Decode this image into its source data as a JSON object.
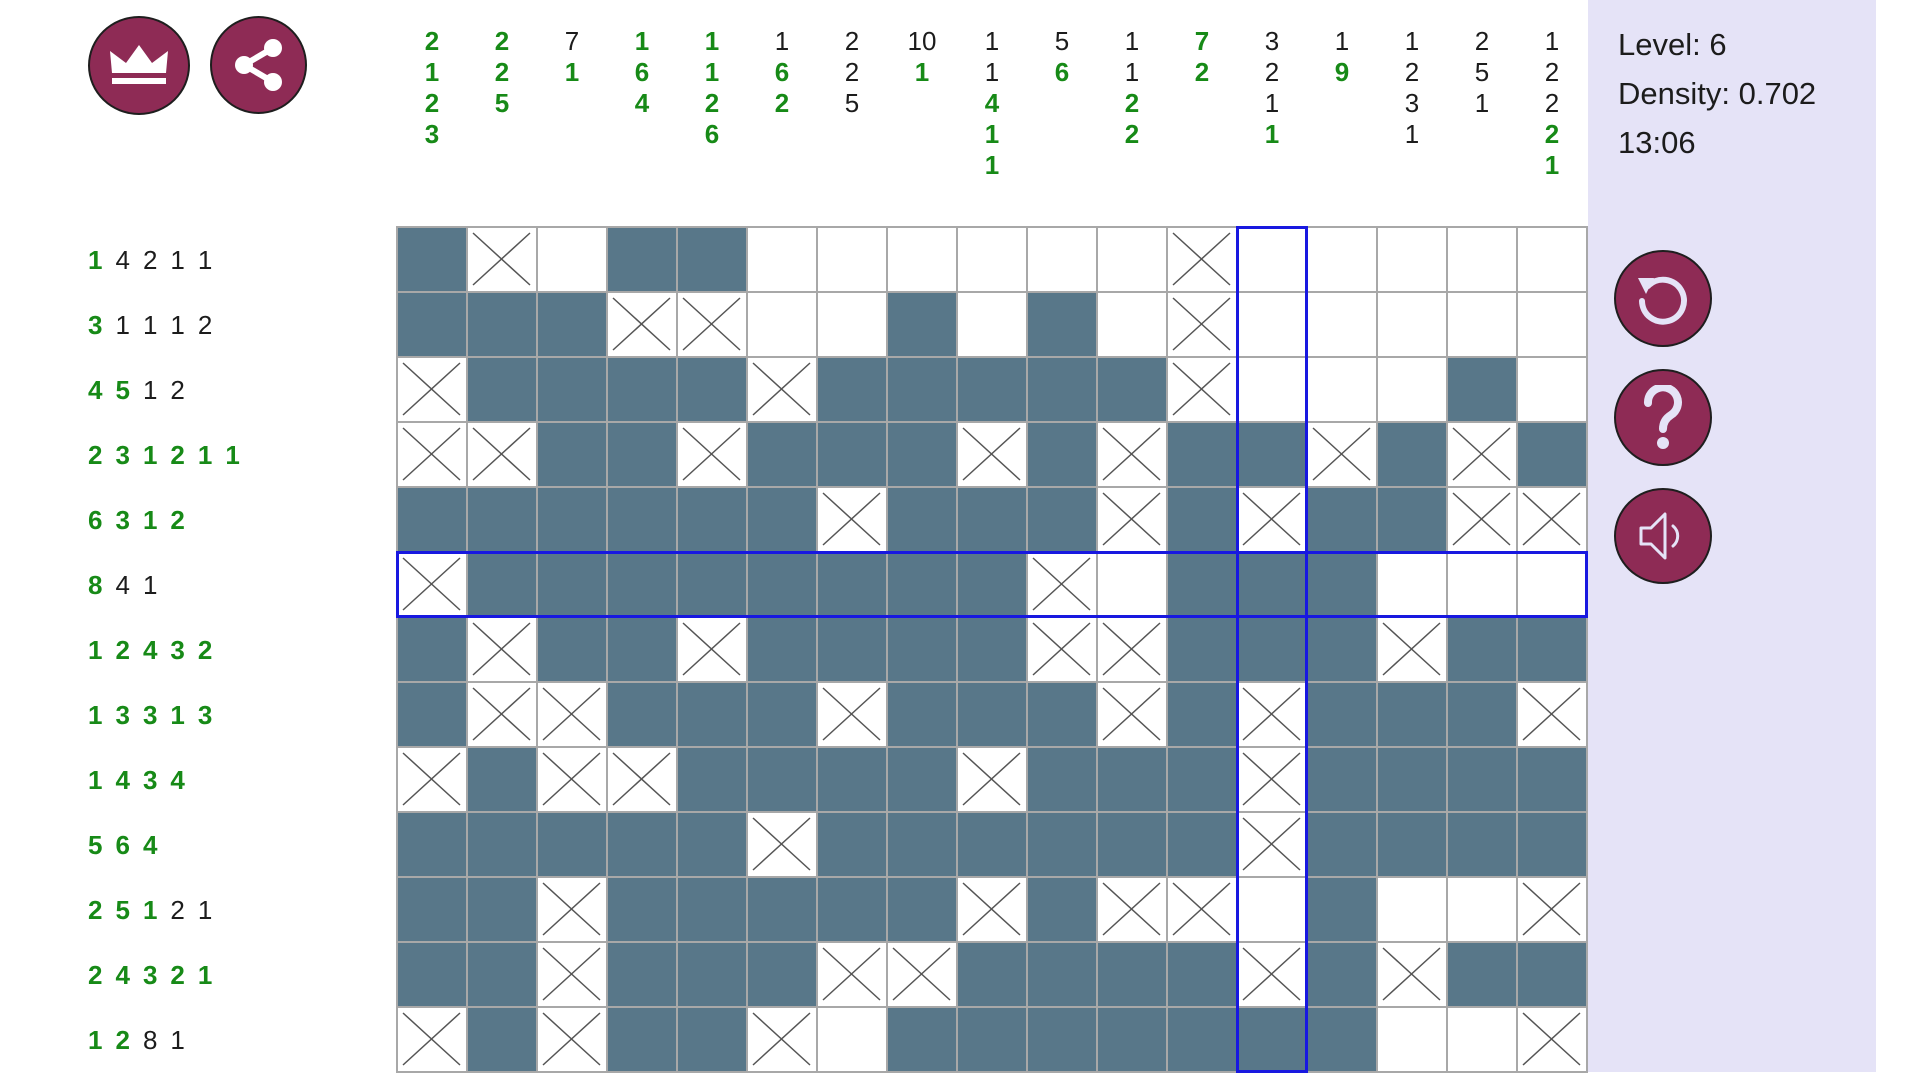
{
  "status": {
    "level": "Level: 6",
    "density": "Density: 0.702",
    "timer": "13:06"
  },
  "colors": {
    "filled": "#587789",
    "button": "#8e2b55",
    "done_clue": "#178a17",
    "highlight": "#1818e0",
    "panel": "#e5e3f7"
  },
  "buttons": {
    "top_left": [
      "crown-icon",
      "share-icon"
    ],
    "side": [
      "reset-icon",
      "help-icon",
      "sound-icon"
    ]
  },
  "selection": {
    "row": 6,
    "col": 13
  },
  "column_clues": [
    [
      {
        "n": "2",
        "done": true
      },
      {
        "n": "1",
        "done": true
      },
      {
        "n": "2",
        "done": true
      },
      {
        "n": "3",
        "done": true
      }
    ],
    [
      {
        "n": "2",
        "done": true
      },
      {
        "n": "2",
        "done": true
      },
      {
        "n": "5",
        "done": true
      }
    ],
    [
      {
        "n": "7",
        "done": false
      },
      {
        "n": "1",
        "done": true
      }
    ],
    [
      {
        "n": "1",
        "done": true
      },
      {
        "n": "6",
        "done": true
      },
      {
        "n": "4",
        "done": true
      }
    ],
    [
      {
        "n": "1",
        "done": true
      },
      {
        "n": "1",
        "done": true
      },
      {
        "n": "2",
        "done": true
      },
      {
        "n": "6",
        "done": true
      }
    ],
    [
      {
        "n": "1",
        "done": false
      },
      {
        "n": "6",
        "done": true
      },
      {
        "n": "2",
        "done": true
      }
    ],
    [
      {
        "n": "2",
        "done": false
      },
      {
        "n": "2",
        "done": false
      },
      {
        "n": "5",
        "done": false
      }
    ],
    [
      {
        "n": "10",
        "done": false
      },
      {
        "n": "1",
        "done": true
      }
    ],
    [
      {
        "n": "1",
        "done": false
      },
      {
        "n": "1",
        "done": false
      },
      {
        "n": "4",
        "done": true
      },
      {
        "n": "1",
        "done": true
      },
      {
        "n": "1",
        "done": true
      }
    ],
    [
      {
        "n": "5",
        "done": false
      },
      {
        "n": "6",
        "done": true
      }
    ],
    [
      {
        "n": "1",
        "done": false
      },
      {
        "n": "1",
        "done": false
      },
      {
        "n": "2",
        "done": true
      },
      {
        "n": "2",
        "done": true
      }
    ],
    [
      {
        "n": "7",
        "done": true
      },
      {
        "n": "2",
        "done": true
      }
    ],
    [
      {
        "n": "3",
        "done": false
      },
      {
        "n": "2",
        "done": false
      },
      {
        "n": "1",
        "done": false
      },
      {
        "n": "1",
        "done": true
      }
    ],
    [
      {
        "n": "1",
        "done": false
      },
      {
        "n": "9",
        "done": true
      }
    ],
    [
      {
        "n": "1",
        "done": false
      },
      {
        "n": "2",
        "done": false
      },
      {
        "n": "3",
        "done": false
      },
      {
        "n": "1",
        "done": false
      }
    ],
    [
      {
        "n": "2",
        "done": false
      },
      {
        "n": "5",
        "done": false
      },
      {
        "n": "1",
        "done": false
      }
    ],
    [
      {
        "n": "1",
        "done": false
      },
      {
        "n": "2",
        "done": false
      },
      {
        "n": "2",
        "done": false
      },
      {
        "n": "2",
        "done": true
      },
      {
        "n": "1",
        "done": true
      }
    ]
  ],
  "row_clues": [
    [
      {
        "n": "1",
        "done": true
      },
      {
        "n": "4",
        "done": false
      },
      {
        "n": "2",
        "done": false
      },
      {
        "n": "1",
        "done": false
      },
      {
        "n": "1",
        "done": false
      }
    ],
    [
      {
        "n": "3",
        "done": true
      },
      {
        "n": "1",
        "done": false
      },
      {
        "n": "1",
        "done": false
      },
      {
        "n": "1",
        "done": false
      },
      {
        "n": "2",
        "done": false
      }
    ],
    [
      {
        "n": "4",
        "done": true
      },
      {
        "n": "5",
        "done": true
      },
      {
        "n": "1",
        "done": false
      },
      {
        "n": "2",
        "done": false
      }
    ],
    [
      {
        "n": "2",
        "done": true
      },
      {
        "n": "3",
        "done": true
      },
      {
        "n": "1",
        "done": true
      },
      {
        "n": "2",
        "done": true
      },
      {
        "n": "1",
        "done": true
      },
      {
        "n": "1",
        "done": true
      }
    ],
    [
      {
        "n": "6",
        "done": true
      },
      {
        "n": "3",
        "done": true
      },
      {
        "n": "1",
        "done": true
      },
      {
        "n": "2",
        "done": true
      }
    ],
    [
      {
        "n": "8",
        "done": true
      },
      {
        "n": "4",
        "done": false
      },
      {
        "n": "1",
        "done": false
      }
    ],
    [
      {
        "n": "1",
        "done": true
      },
      {
        "n": "2",
        "done": true
      },
      {
        "n": "4",
        "done": true
      },
      {
        "n": "3",
        "done": true
      },
      {
        "n": "2",
        "done": true
      }
    ],
    [
      {
        "n": "1",
        "done": true
      },
      {
        "n": "3",
        "done": true
      },
      {
        "n": "3",
        "done": true
      },
      {
        "n": "1",
        "done": true
      },
      {
        "n": "3",
        "done": true
      }
    ],
    [
      {
        "n": "1",
        "done": true
      },
      {
        "n": "4",
        "done": true
      },
      {
        "n": "3",
        "done": true
      },
      {
        "n": "4",
        "done": true
      }
    ],
    [
      {
        "n": "5",
        "done": true
      },
      {
        "n": "6",
        "done": true
      },
      {
        "n": "4",
        "done": true
      }
    ],
    [
      {
        "n": "2",
        "done": true
      },
      {
        "n": "5",
        "done": true
      },
      {
        "n": "1",
        "done": true
      },
      {
        "n": "2",
        "done": false
      },
      {
        "n": "1",
        "done": false
      }
    ],
    [
      {
        "n": "2",
        "done": true
      },
      {
        "n": "4",
        "done": true
      },
      {
        "n": "3",
        "done": true
      },
      {
        "n": "2",
        "done": true
      },
      {
        "n": "1",
        "done": true
      }
    ],
    [
      {
        "n": "1",
        "done": true
      },
      {
        "n": "2",
        "done": true
      },
      {
        "n": "8",
        "done": false
      },
      {
        "n": "1",
        "done": false
      }
    ]
  ],
  "grid": [
    "#X.##......X.....",
    "###XX..#.#.X.....",
    "X####X#####X...#.",
    "XX##X###X#X##X#X#",
    "######X###X#X##XX",
    "X########X.###...",
    "#X##X####XX###X##",
    "#XX###X###X#X###X",
    "X#XX####X###X####",
    "#####X######X####",
    "##X#####X#XX.#..X",
    "##X###XX####X#X##",
    "X#X##X.#######..X"
  ]
}
